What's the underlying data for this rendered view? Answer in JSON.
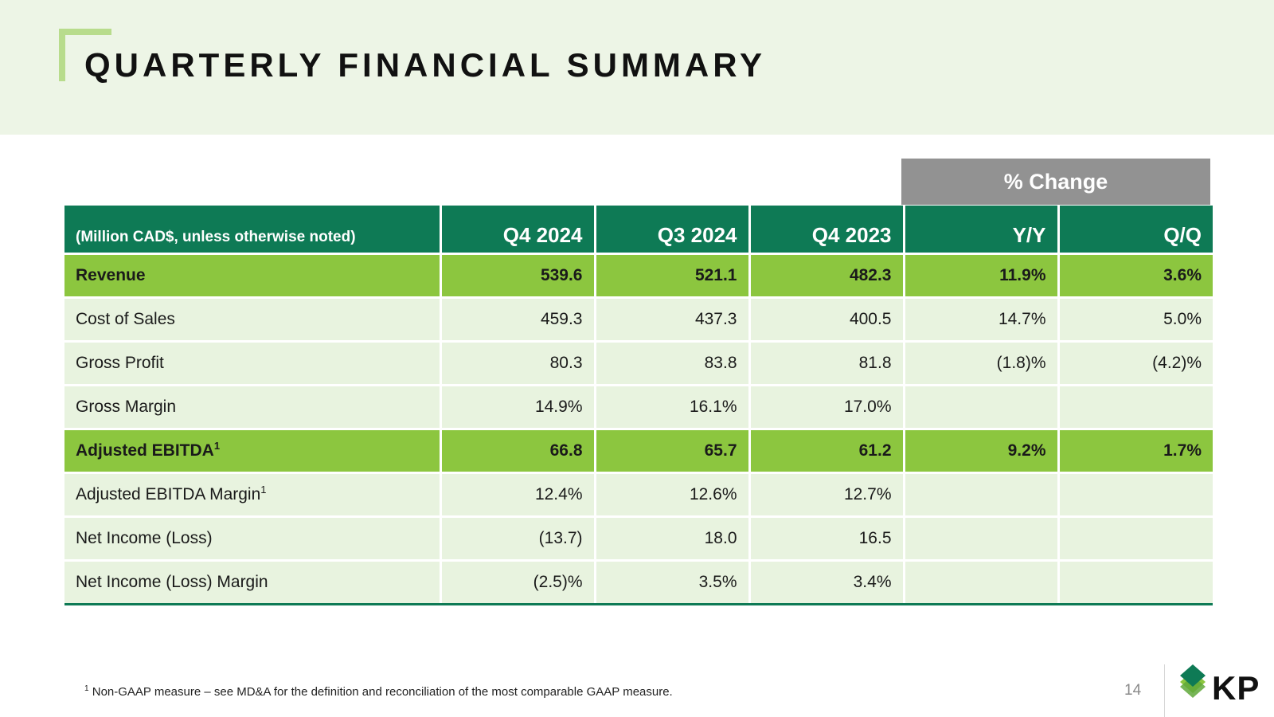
{
  "title": "QUARTERLY FINANCIAL SUMMARY",
  "change_header": "% Change",
  "table": {
    "columns": [
      "(Million CAD$, unless otherwise noted)",
      "Q4 2024",
      "Q3 2024",
      "Q4 2023",
      "Y/Y",
      "Q/Q"
    ],
    "rows": [
      {
        "label": "Revenue",
        "sup": "",
        "cells": [
          "539.6",
          "521.1",
          "482.3",
          "11.9%",
          "3.6%"
        ]
      },
      {
        "label": "Cost of Sales",
        "sup": "",
        "cells": [
          "459.3",
          "437.3",
          "400.5",
          "14.7%",
          "5.0%"
        ]
      },
      {
        "label": "Gross Profit",
        "sup": "",
        "cells": [
          "80.3",
          "83.8",
          "81.8",
          "(1.8)%",
          "(4.2)%"
        ]
      },
      {
        "label": "Gross Margin",
        "sup": "",
        "cells": [
          "14.9%",
          "16.1%",
          "17.0%",
          "",
          ""
        ]
      },
      {
        "label": "Adjusted EBITDA",
        "sup": "1",
        "cells": [
          "66.8",
          "65.7",
          "61.2",
          "9.2%",
          "1.7%"
        ]
      },
      {
        "label": "Adjusted EBITDA Margin",
        "sup": "1",
        "cells": [
          "12.4%",
          "12.6%",
          "12.7%",
          "",
          ""
        ]
      },
      {
        "label": "Net Income (Loss)",
        "sup": "",
        "cells": [
          "(13.7)",
          "18.0",
          "16.5",
          "",
          ""
        ]
      },
      {
        "label": "Net Income (Loss) Margin",
        "sup": "",
        "cells": [
          "(2.5)%",
          "3.5%",
          "3.4%",
          "",
          ""
        ]
      }
    ]
  },
  "footnote": {
    "marker": "1",
    "text": "Non-GAAP measure – see MD&A for the definition and reconciliation of the most comparable GAAP measure."
  },
  "page_number": "14",
  "logo": {
    "text": "KP",
    "icon": "kp-leaf-logo-icon"
  },
  "colors": {
    "header_green": "#0e7a55",
    "highlight_green": "#8cc63f",
    "row_tint": "#e8f3df",
    "band": "#edf5e6",
    "change_gray": "#929292"
  }
}
